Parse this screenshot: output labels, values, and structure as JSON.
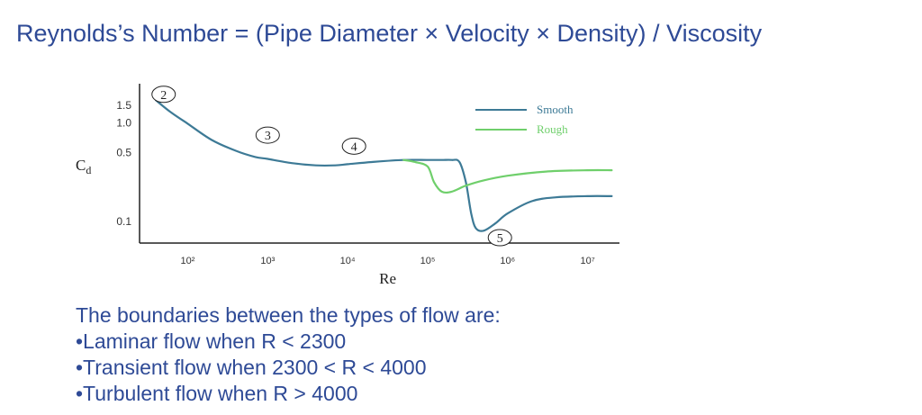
{
  "title": "Reynolds’s Number = (Pipe Diameter × Velocity × Density) / Viscosity",
  "colors": {
    "title": "#2e4a96",
    "text": "#2e4a96",
    "smooth": "#3d7a96",
    "rough": "#6fcf6b",
    "axis": "#222222",
    "label": "#333333"
  },
  "chart_data": {
    "type": "line",
    "xscale": "log",
    "yscale": "log",
    "xlabel": "Re",
    "ylabel_main": "C",
    "ylabel_sub": "d",
    "xlim": [
      25,
      25000000
    ],
    "ylim": [
      0.06,
      2.5
    ],
    "x_ticks": [
      {
        "value": 100,
        "label": "10²"
      },
      {
        "value": 1000,
        "label": "10³"
      },
      {
        "value": 10000,
        "label": "10⁴"
      },
      {
        "value": 100000,
        "label": "10⁵"
      },
      {
        "value": 1000000,
        "label": "10⁶"
      },
      {
        "value": 10000000,
        "label": "10⁷"
      }
    ],
    "y_ticks": [
      {
        "value": 1.5,
        "label": "1.5"
      },
      {
        "value": 1.0,
        "label": "1.0"
      },
      {
        "value": 0.5,
        "label": "0.5"
      },
      {
        "value": 0.1,
        "label": "0.1"
      }
    ],
    "legend_position": "top-right",
    "series": [
      {
        "name": "Smooth",
        "x": [
          40,
          60,
          100,
          200,
          400,
          700,
          1000,
          2000,
          4000,
          7000,
          10000,
          20000,
          50000,
          100000,
          150000,
          200000,
          250000,
          300000,
          350000,
          400000,
          500000,
          700000,
          1000000,
          2000000,
          4000000,
          10000000,
          20000000
        ],
        "y": [
          1.7,
          1.3,
          0.98,
          0.67,
          0.52,
          0.45,
          0.43,
          0.39,
          0.37,
          0.37,
          0.38,
          0.4,
          0.42,
          0.42,
          0.42,
          0.42,
          0.4,
          0.25,
          0.12,
          0.085,
          0.08,
          0.095,
          0.12,
          0.16,
          0.175,
          0.18,
          0.18
        ]
      },
      {
        "name": "Rough",
        "x": [
          50000,
          70000,
          100000,
          120000,
          150000,
          200000,
          300000,
          500000,
          1000000,
          3000000,
          10000000,
          20000000
        ],
        "y": [
          0.42,
          0.4,
          0.36,
          0.25,
          0.2,
          0.2,
          0.23,
          0.26,
          0.29,
          0.32,
          0.33,
          0.33
        ]
      }
    ],
    "annotations": [
      {
        "label": "2",
        "x": 50,
        "y": 1.95
      },
      {
        "label": "3",
        "x": 1000,
        "y": 0.75
      },
      {
        "label": "4",
        "x": 12000,
        "y": 0.58
      },
      {
        "label": "5",
        "x": 800000,
        "y": 0.068
      }
    ]
  },
  "bullets": {
    "heading": "The boundaries between the types of flow are:",
    "items": [
      "•Laminar flow when R < 2300",
      "•Transient flow when 2300 < R < 4000",
      "•Turbulent flow when R > 4000"
    ]
  }
}
